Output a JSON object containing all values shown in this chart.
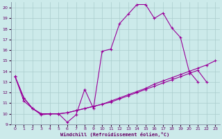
{
  "xlabel": "Windchill (Refroidissement éolien,°C)",
  "background_color": "#cceaea",
  "line_color": "#990099",
  "grid_color": "#aacccc",
  "xlim": [
    -0.5,
    23.5
  ],
  "ylim": [
    9,
    20.5
  ],
  "yticks": [
    9,
    10,
    11,
    12,
    13,
    14,
    15,
    16,
    17,
    18,
    19,
    20
  ],
  "xticks": [
    0,
    1,
    2,
    3,
    4,
    5,
    6,
    7,
    8,
    9,
    10,
    11,
    12,
    13,
    14,
    15,
    16,
    17,
    18,
    19,
    20,
    21,
    22,
    23
  ],
  "line1_x": [
    0,
    1,
    2,
    3,
    4,
    5,
    6,
    7,
    8,
    9,
    10,
    11,
    12,
    13,
    14,
    15,
    16,
    17,
    18,
    19,
    20,
    21
  ],
  "line1_y": [
    13.5,
    11.2,
    10.5,
    9.9,
    10.0,
    10.0,
    9.2,
    9.9,
    12.3,
    10.5,
    15.9,
    16.1,
    18.5,
    19.4,
    20.3,
    20.3,
    19.0,
    19.5,
    18.1,
    17.2,
    14.0,
    13.0
  ],
  "line2_x": [
    0,
    1,
    2,
    3,
    4,
    5,
    6,
    7,
    8,
    9,
    10,
    11,
    12,
    13,
    14,
    15,
    16,
    17,
    18,
    19,
    20,
    21,
    22
  ],
  "line2_y": [
    13.5,
    11.5,
    10.5,
    10.0,
    10.0,
    10.0,
    10.1,
    10.3,
    10.5,
    10.7,
    10.9,
    11.1,
    11.4,
    11.7,
    12.0,
    12.3,
    12.6,
    12.9,
    13.2,
    13.5,
    13.8,
    14.1,
    13.0
  ],
  "line3_x": [
    0,
    1,
    2,
    3,
    4,
    5,
    6,
    7,
    8,
    9,
    10,
    11,
    12,
    13,
    14,
    15,
    16,
    17,
    18,
    19,
    20,
    21,
    22,
    23
  ],
  "line3_y": [
    13.5,
    11.5,
    10.5,
    10.0,
    10.0,
    10.0,
    10.1,
    10.3,
    10.5,
    10.7,
    10.9,
    11.2,
    11.5,
    11.8,
    12.1,
    12.4,
    12.8,
    13.1,
    13.4,
    13.7,
    14.0,
    14.3,
    14.6,
    15.0
  ]
}
